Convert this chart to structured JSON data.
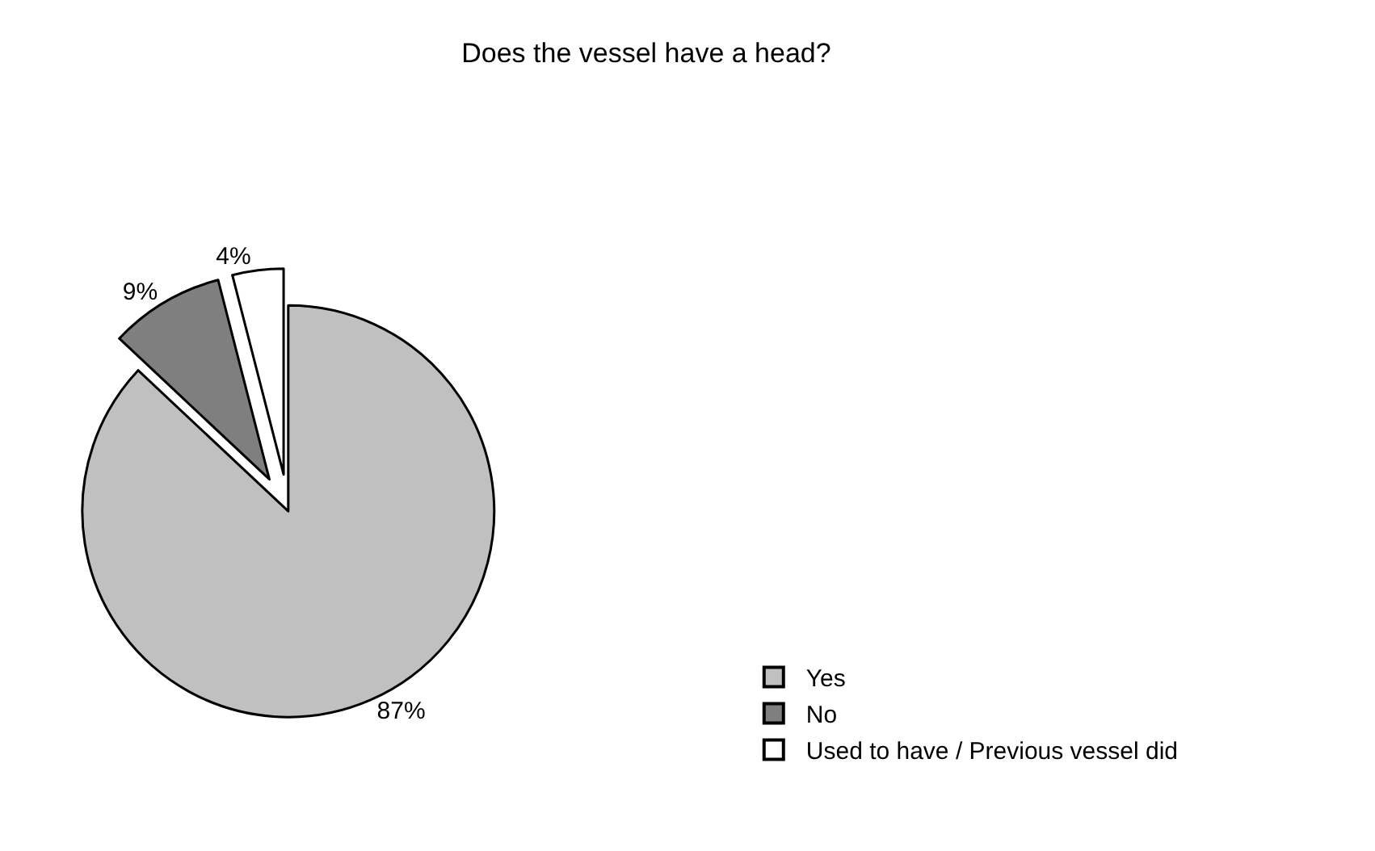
{
  "chart_data": {
    "type": "pie",
    "title": "Does the vessel have a head?",
    "categories": [
      "Yes",
      "No",
      "Used to have / Previous vessel did"
    ],
    "values": [
      87,
      9,
      4
    ],
    "value_labels": [
      "87%",
      "9%",
      "4%"
    ],
    "colors": [
      "#c0c0c0",
      "#7f7f7f",
      "#ffffff"
    ],
    "legend": "bottom right"
  }
}
